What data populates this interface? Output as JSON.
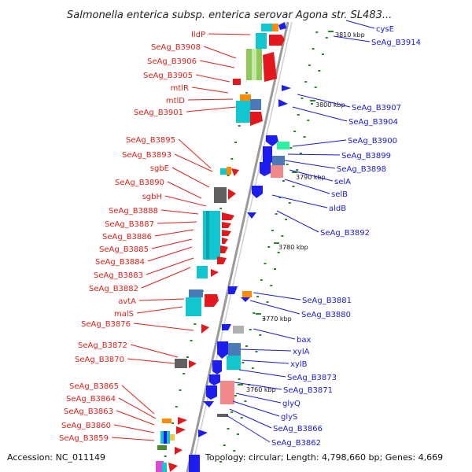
{
  "title": "Salmonella enterica subsp. enterica serovar Agona str. SL483...",
  "accession": "Accession: NC_011149",
  "topology": "Topology: circular; Length: 4,798,660 bp; Genes: 4,669",
  "colors": {
    "left_label": "#e0201b",
    "right_label": "#1a1ad8",
    "backbone": "#9a9a9a",
    "tick": "#2a8a2a"
  },
  "kbp_markers": [
    "3810 kbp",
    "3800 kbp",
    "3790 kbp",
    "3780 kbp",
    "3770 kbp",
    "3760 kbp"
  ],
  "left_labels": [
    "lldP",
    "SeAg_B3908",
    "SeAg_B3906",
    "SeAg_B3905",
    "mtlR",
    "mtlD",
    "SeAg_B3901",
    "SeAg_B3895",
    "SeAg_B3893",
    "sgbE",
    "SeAg_B3890",
    "sgbH",
    "SeAg_B3888",
    "SeAg_B3887",
    "SeAg_B3886",
    "SeAg_B3885",
    "SeAg_B3884",
    "SeAg_B3883",
    "SeAg_B3882",
    "avtA",
    "malS",
    "SeAg_B3876",
    "SeAg_B3872",
    "SeAg_B3870",
    "SeAg_B3865",
    "SeAg_B3864",
    "SeAg_B3863",
    "SeAg_B3860",
    "SeAg_B3859"
  ],
  "right_labels": [
    "cysE",
    "SeAg_B3914",
    "SeAg_B3907",
    "SeAg_B3904",
    "SeAg_B3900",
    "SeAg_B3899",
    "SeAg_B3898",
    "selA",
    "selB",
    "aldB",
    "SeAg_B3892",
    "SeAg_B3881",
    "SeAg_B3880",
    "bax",
    "xylA",
    "xylB",
    "SeAg_B3873",
    "SeAg_B3871",
    "glyQ",
    "glyS",
    "SeAg_B3866",
    "SeAg_B3862"
  ]
}
